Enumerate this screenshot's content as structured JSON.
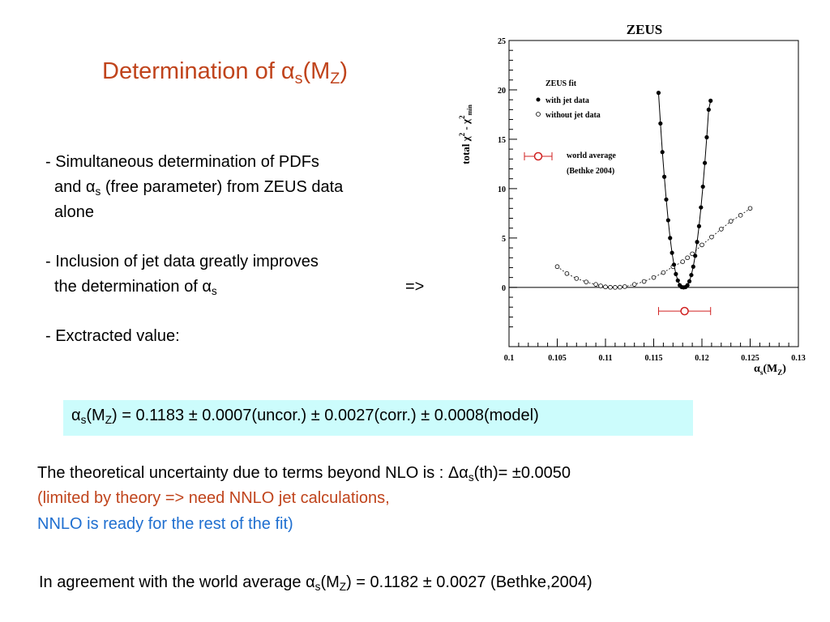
{
  "slide": {
    "title_main": "Determination of α",
    "title_sub1": "s",
    "title_mid": "(M",
    "title_sub2": "Z",
    "title_end": ")",
    "bullet1_l1": "- Simultaneous determination of PDFs",
    "bullet1_l2a": "and α",
    "bullet1_l2sub": "s",
    "bullet1_l2b": " (free parameter) from ZEUS data",
    "bullet1_l3": "alone",
    "bullet2_l1": "- Inclusion of jet data greatly improves",
    "bullet2_l2a": "the determination of α",
    "bullet2_l2sub": "s",
    "arrow": "=>",
    "bullet3": "- Exctracted value:",
    "result": {
      "a": "α",
      "sub1": "s",
      "b": "(M",
      "sub2": "Z",
      "c": ") = 0.1183 ± 0.0007(uncor.) ± 0.0027(corr.) ± 0.0008(model)"
    },
    "theory_l1a": "The theoretical uncertainty due to terms beyond NLO is :  Δα",
    "theory_l1sub": "s",
    "theory_l1b": "(th)= ±0.0050",
    "theory_l2": "(limited by theory => need  NNLO jet calculations,",
    "theory_l3": "NNLO is ready for the rest of the fit)",
    "agree_a": "In agreement with the world average α",
    "agree_sub1": "s",
    "agree_b": "(M",
    "agree_sub2": "Z",
    "agree_c": ") = 0.1182 ± 0.0027  (Bethke,2004)"
  },
  "colors": {
    "title": "#c0441c",
    "red_text": "#c0441c",
    "blue_text": "#1f6fd0",
    "result_box": "#ccfcfc",
    "world_avg_marker": "#d02020"
  },
  "chart_data": {
    "type": "scatter",
    "title": "ZEUS",
    "xlabel": "α_s(M_Z)",
    "ylabel": "total χ² - χ²min",
    "xlim": [
      0.1,
      0.13
    ],
    "ylim": [
      -6,
      25
    ],
    "xticks": [
      "0.1",
      "0.105",
      "0.11",
      "0.115",
      "0.12",
      "0.125",
      "0.13"
    ],
    "yticks": [
      "0",
      "5",
      "10",
      "15",
      "20",
      "25"
    ],
    "legend_title": "ZEUS fit",
    "series": [
      {
        "name": "with jet data",
        "marker": "filled",
        "points": [
          [
            0.1155,
            19.7
          ],
          [
            0.1157,
            16.6
          ],
          [
            0.1159,
            13.7
          ],
          [
            0.1161,
            11.2
          ],
          [
            0.1163,
            8.9
          ],
          [
            0.1165,
            6.8
          ],
          [
            0.1167,
            5.0
          ],
          [
            0.1169,
            3.5
          ],
          [
            0.1171,
            2.3
          ],
          [
            0.1173,
            1.35
          ],
          [
            0.1175,
            0.7
          ],
          [
            0.1177,
            0.22
          ],
          [
            0.1179,
            0.03
          ],
          [
            0.1181,
            0.0
          ],
          [
            0.1183,
            0.03
          ],
          [
            0.1185,
            0.22
          ],
          [
            0.1187,
            0.62
          ],
          [
            0.1189,
            1.25
          ],
          [
            0.1191,
            2.1
          ],
          [
            0.1193,
            3.2
          ],
          [
            0.1195,
            4.6
          ],
          [
            0.1197,
            6.2
          ],
          [
            0.1199,
            8.1
          ],
          [
            0.1201,
            10.2
          ],
          [
            0.1203,
            12.6
          ],
          [
            0.1205,
            15.2
          ],
          [
            0.1207,
            18.0
          ],
          [
            0.1209,
            18.9
          ]
        ]
      },
      {
        "name": "without jet data",
        "marker": "open",
        "points": [
          [
            0.105,
            2.1
          ],
          [
            0.106,
            1.4
          ],
          [
            0.107,
            0.9
          ],
          [
            0.108,
            0.55
          ],
          [
            0.109,
            0.3
          ],
          [
            0.1095,
            0.15
          ],
          [
            0.11,
            0.05
          ],
          [
            0.1105,
            0.01
          ],
          [
            0.111,
            0.0
          ],
          [
            0.1115,
            0.02
          ],
          [
            0.112,
            0.08
          ],
          [
            0.113,
            0.3
          ],
          [
            0.114,
            0.6
          ],
          [
            0.115,
            1.0
          ],
          [
            0.116,
            1.5
          ],
          [
            0.117,
            2.1
          ],
          [
            0.118,
            2.6
          ],
          [
            0.1185,
            3.0
          ],
          [
            0.119,
            3.4
          ],
          [
            0.12,
            4.3
          ],
          [
            0.121,
            5.1
          ],
          [
            0.122,
            5.9
          ],
          [
            0.123,
            6.7
          ],
          [
            0.124,
            7.3
          ],
          [
            0.125,
            8.0
          ]
        ]
      }
    ],
    "annotations": [
      {
        "label": "world average",
        "sublabel": "(Bethke 2004)",
        "marker": "open-red-legend"
      },
      {
        "x": 0.1182,
        "xerr": 0.0027,
        "y": -2.4,
        "marker": "open-red-errorbar"
      }
    ],
    "reference_line_y": 0,
    "legend_position": "top-left"
  }
}
